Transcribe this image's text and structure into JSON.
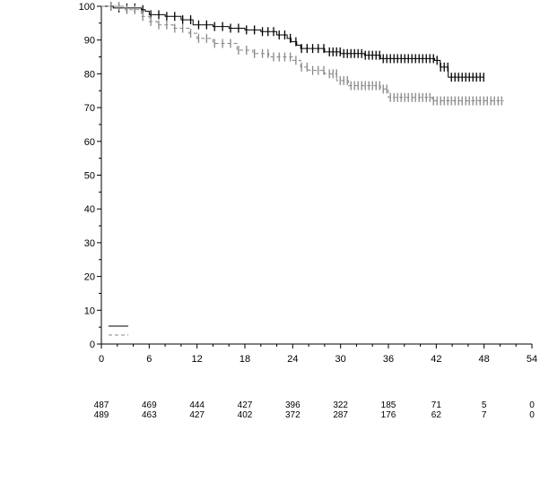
{
  "colors": {
    "series_a": "#000000",
    "series_b": "#888888",
    "axis": "#000000"
  },
  "chart_data": {
    "type": "line",
    "subtype": "kaplan-meier",
    "title": "",
    "xlabel": "",
    "ylabel": "",
    "xlim": [
      0,
      54
    ],
    "ylim": [
      0,
      100
    ],
    "x_ticks": [
      0,
      6,
      12,
      18,
      24,
      30,
      36,
      42,
      48,
      54
    ],
    "y_ticks": [
      0,
      10,
      20,
      30,
      40,
      50,
      60,
      70,
      80,
      90,
      100
    ],
    "grid": false,
    "legend": {
      "placement": "bottom-left",
      "entries": [
        {
          "style": "solid",
          "color": "#000000"
        },
        {
          "style": "dashed",
          "color": "#888888"
        }
      ]
    },
    "series": [
      {
        "style": "solid",
        "color": "#000000",
        "x": [
          0,
          1.5,
          3,
          4,
          5,
          5.5,
          6,
          8,
          10,
          11.5,
          14,
          16,
          18,
          20,
          22,
          23.3,
          23.8,
          24.5,
          25,
          28,
          30,
          33,
          35,
          41.8,
          42.5,
          43.5,
          48
        ],
        "y": [
          100,
          99.5,
          99.5,
          99.5,
          99,
          98.5,
          97.5,
          97,
          96,
          94.5,
          94,
          93.5,
          93,
          92.5,
          91.5,
          90.5,
          89.5,
          88.5,
          87.5,
          86.5,
          86,
          85.5,
          84.5,
          84,
          82,
          79,
          79
        ]
      },
      {
        "style": "dashed",
        "color": "#888888",
        "x": [
          0,
          3,
          5,
          6,
          7,
          9,
          11,
          12,
          14,
          17,
          19,
          21,
          24,
          25,
          26,
          28,
          29.5,
          31,
          35,
          36,
          41,
          41.5,
          48,
          50.5
        ],
        "y": [
          100,
          99,
          97,
          95.5,
          94.5,
          93.5,
          92,
          90.5,
          89,
          87,
          86,
          85,
          84,
          82,
          81,
          80,
          78,
          76.5,
          75.5,
          73,
          73,
          72,
          72,
          72
        ]
      }
    ]
  },
  "risk_table": {
    "rows": [
      {
        "values": [
          "487",
          "469",
          "444",
          "427",
          "396",
          "322",
          "185",
          "71",
          "5",
          "0"
        ]
      },
      {
        "values": [
          "489",
          "463",
          "427",
          "402",
          "372",
          "287",
          "176",
          "62",
          "7",
          "0"
        ]
      }
    ]
  }
}
